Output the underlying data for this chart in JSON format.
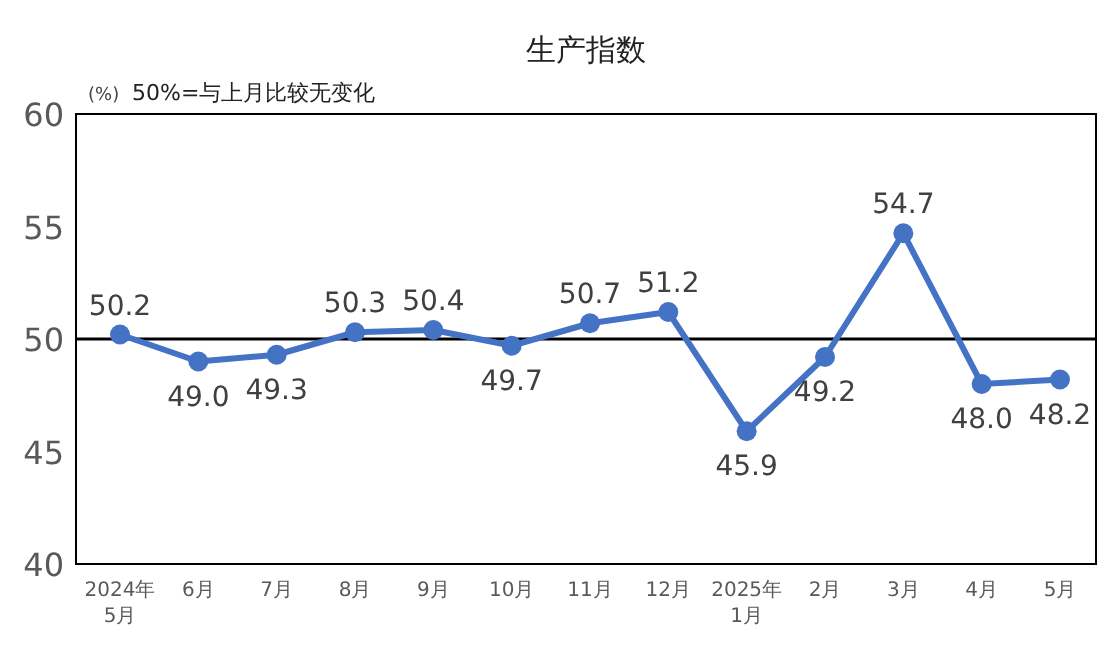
{
  "chart_data": {
    "type": "line",
    "title": "生产指数",
    "ylabel": "(%)",
    "annotations": [
      "50%=与上月比较无变化"
    ],
    "categories": [
      "2024年\n5月",
      "6月",
      "7月",
      "8月",
      "9月",
      "10月",
      "11月",
      "12月",
      "2025年\n1月",
      "2月",
      "3月",
      "4月",
      "5月"
    ],
    "values": [
      50.2,
      49.0,
      49.3,
      50.3,
      50.4,
      49.7,
      50.7,
      51.2,
      45.9,
      49.2,
      54.7,
      48.0,
      48.2
    ],
    "value_labels": [
      "50.2",
      "49.0",
      "49.3",
      "50.3",
      "50.4",
      "49.7",
      "50.7",
      "51.2",
      "45.9",
      "49.2",
      "54.7",
      "48.0",
      "48.2"
    ],
    "color": "#4472c4",
    "marker": "circle",
    "line_style": "solid",
    "grid": false,
    "ylim": [
      40,
      60
    ],
    "yticks": [
      40,
      45,
      50,
      55,
      60
    ],
    "ref_lines": [
      {
        "axis": "y",
        "value": 50,
        "color": "#000000"
      }
    ]
  }
}
